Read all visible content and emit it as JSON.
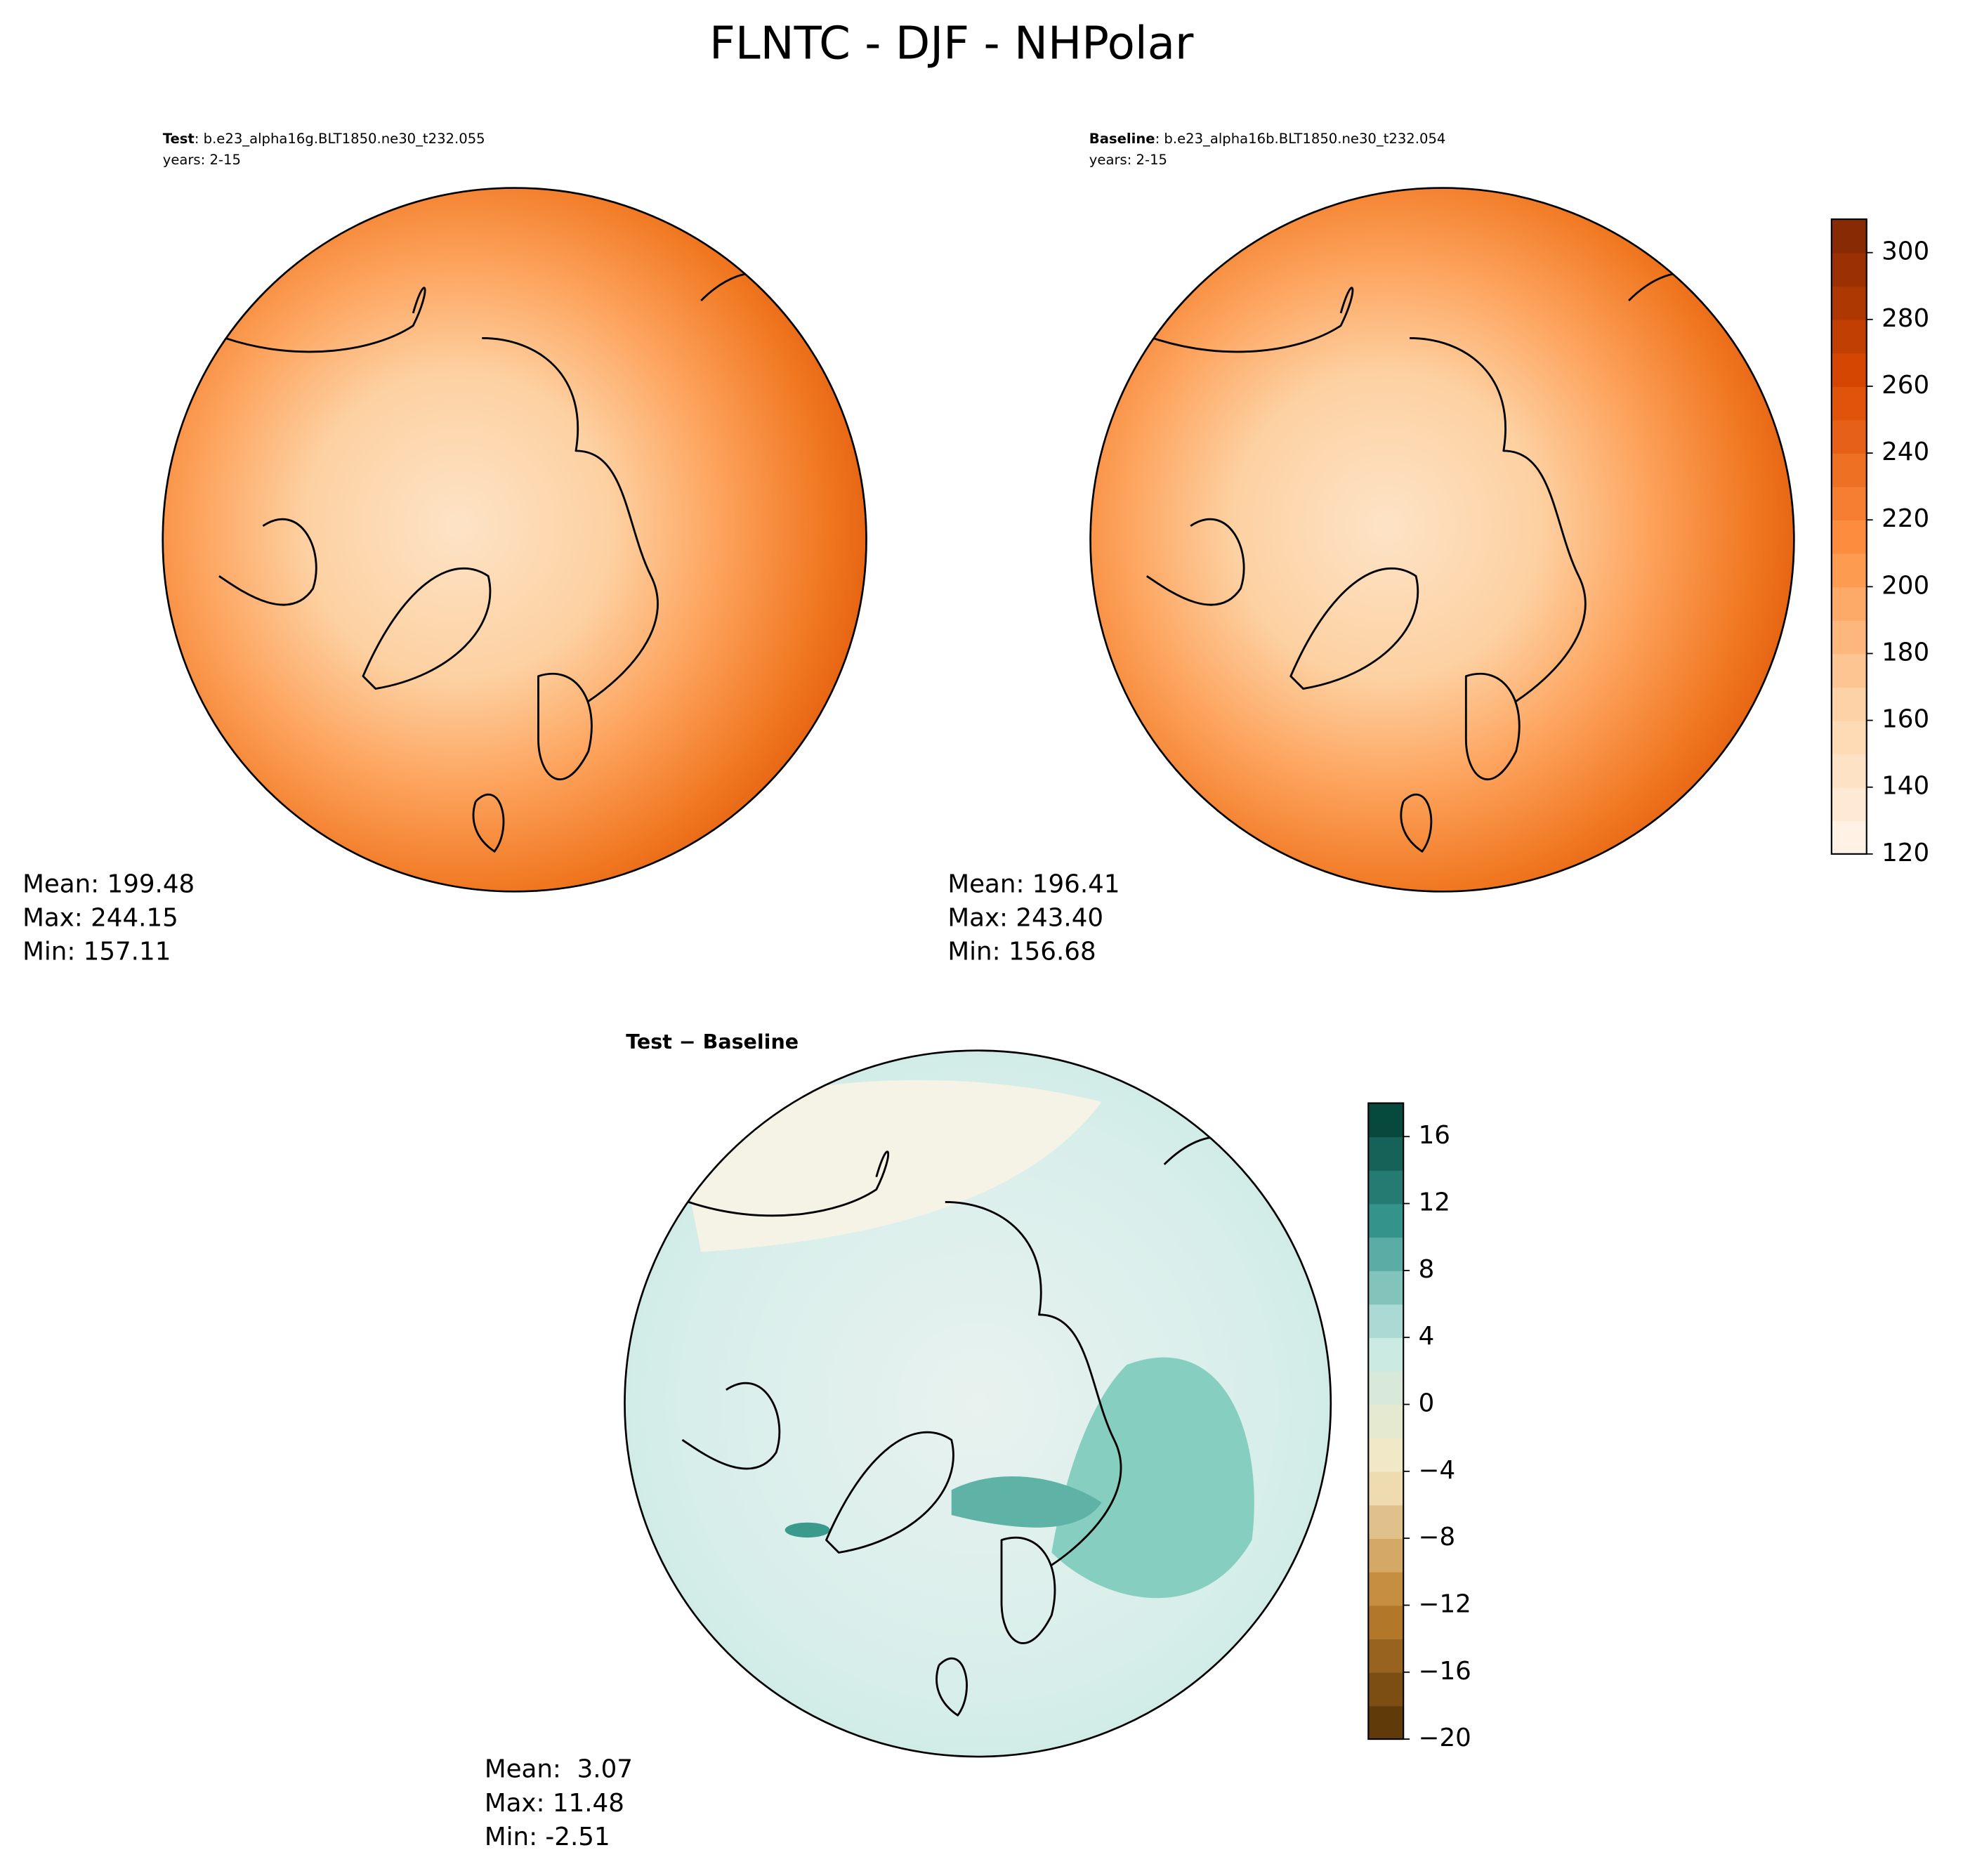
{
  "title": "FLNTC - DJF - NHPolar",
  "panels": [
    {
      "label": "Test",
      "case": ": b.e23_alpha16g.BLT1850.ne30_t232.055",
      "years": "years: 2-15",
      "stats": [
        "Mean: 199.48",
        "Max: 244.15",
        "Min: 157.11"
      ]
    },
    {
      "label": "Baseline",
      "case": ": b.e23_alpha16b.BLT1850.ne30_t232.054",
      "years": "years: 2-15",
      "stats": [
        "Mean: 196.41",
        "Max: 243.40",
        "Min: 156.68"
      ]
    },
    {
      "label": "Test − Baseline",
      "stats": [
        "Mean:  3.07",
        "Max: 11.48",
        "Min: -2.51"
      ]
    }
  ],
  "colorbars": [
    {
      "lim": [
        120,
        310
      ],
      "ticks": [
        120,
        140,
        160,
        180,
        200,
        220,
        240,
        260,
        280,
        300
      ]
    },
    {
      "lim": [
        -20,
        18
      ],
      "ticks": [
        {
          "value": -20,
          "label": "−20"
        },
        {
          "value": -16,
          "label": "−16"
        },
        {
          "value": -12,
          "label": "−12"
        },
        {
          "value": -8,
          "label": "−8"
        },
        {
          "value": -4,
          "label": "−4"
        },
        0,
        4,
        8,
        12,
        16
      ]
    }
  ]
}
